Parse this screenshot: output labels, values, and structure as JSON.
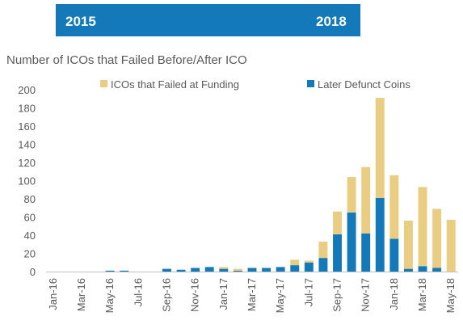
{
  "banner": {
    "start_label": "2015",
    "end_label": "2018",
    "color": "#1479b8"
  },
  "chart_data": {
    "type": "bar",
    "stacked": true,
    "title": "Number of ICOs that Failed Before/After ICO",
    "xlabel": "",
    "ylabel": "",
    "ylim": [
      0,
      200
    ],
    "yticks": [
      0,
      20,
      40,
      60,
      80,
      100,
      120,
      140,
      160,
      180,
      200
    ],
    "legend_position": "top",
    "categories": [
      "Jan-16",
      "Feb-16",
      "Mar-16",
      "Apr-16",
      "May-16",
      "Jun-16",
      "Jul-16",
      "Aug-16",
      "Sep-16",
      "Oct-16",
      "Nov-16",
      "Dec-16",
      "Jan-17",
      "Feb-17",
      "Mar-17",
      "Apr-17",
      "May-17",
      "Jun-17",
      "Jul-17",
      "Aug-17",
      "Sep-17",
      "Oct-17",
      "Nov-17",
      "Dec-17",
      "Jan-18",
      "Feb-18",
      "Mar-18",
      "Apr-18",
      "May-18"
    ],
    "xtick_labels": [
      "Jan-16",
      "Mar-16",
      "May-16",
      "Jul-16",
      "Sep-16",
      "Nov-16",
      "Jan-17",
      "Mar-17",
      "May-17",
      "Jul-17",
      "Sep-17",
      "Nov-17",
      "Jan-18",
      "Mar-18",
      "May-18"
    ],
    "series": [
      {
        "name": "Later Defunct Coins",
        "color": "#1479b8",
        "values": [
          0,
          0,
          0,
          0,
          1,
          1,
          0,
          0,
          3,
          2,
          4,
          5,
          3,
          1,
          4,
          4,
          5,
          7,
          10,
          15,
          41,
          65,
          42,
          81,
          36,
          3,
          6,
          4,
          0
        ]
      },
      {
        "name": "ICOs that Failed at Funding",
        "color": "#e8cd83",
        "values": [
          0,
          0,
          0,
          0,
          0,
          0,
          0,
          0,
          0,
          0,
          0,
          0,
          2,
          2,
          0,
          0,
          0,
          6,
          2,
          18,
          25,
          39,
          73,
          110,
          70,
          53,
          87,
          65,
          57
        ]
      }
    ]
  }
}
